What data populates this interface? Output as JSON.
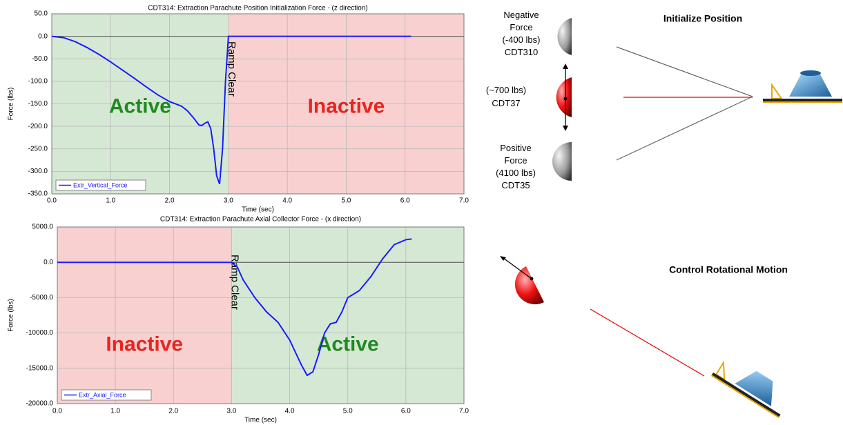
{
  "chart_data": [
    {
      "type": "line",
      "title": "CDT314:  Extraction Parachute Position Initialization Force - (z direction)",
      "x_label": "Time (sec)",
      "y_label": "Force (lbs)",
      "xlim": [
        0,
        7
      ],
      "ylim": [
        -350,
        50
      ],
      "xticks": [
        {
          "value": 0,
          "label": "0.0"
        },
        {
          "value": 1,
          "label": "1.0"
        },
        {
          "value": 2,
          "label": "2.0"
        },
        {
          "value": 3,
          "label": "3.0"
        },
        {
          "value": 4,
          "label": "4.0"
        },
        {
          "value": 5,
          "label": "5.0"
        },
        {
          "value": 6,
          "label": "6.0"
        },
        {
          "value": 7,
          "label": "7.0"
        }
      ],
      "yticks": [
        {
          "value": 50,
          "label": "50.0"
        },
        {
          "value": 0,
          "label": "0.0"
        },
        {
          "value": -50,
          "label": "-50.0"
        },
        {
          "value": -100,
          "label": "-100.0"
        },
        {
          "value": -150,
          "label": "-150.0"
        },
        {
          "value": -200,
          "label": "-200.0"
        },
        {
          "value": -250,
          "label": "-250.0"
        },
        {
          "value": -300,
          "label": "-300.0"
        },
        {
          "value": -350,
          "label": "-350.0"
        }
      ],
      "grid": true,
      "regions": [
        {
          "start": 0,
          "end": 3,
          "color": "#d5e8d4",
          "label": "Active",
          "label_color": "#1f8a1f"
        },
        {
          "start": 3,
          "end": 7,
          "color": "#f8d0d0",
          "label": "Inactive",
          "label_color": "#e8241f"
        }
      ],
      "vline": {
        "x": 3,
        "label": "Ramp Clear"
      },
      "x": [
        0,
        0.2,
        0.4,
        0.6,
        0.8,
        1.0,
        1.2,
        1.4,
        1.6,
        1.8,
        2.0,
        2.2,
        2.3,
        2.4,
        2.5,
        2.55,
        2.6,
        2.65,
        2.7,
        2.75,
        2.8,
        2.85,
        2.9,
        2.95,
        3.0,
        3.5,
        4.0,
        5.0,
        6.1
      ],
      "series": [
        {
          "name": "Extr_Vertical_Force",
          "color": "#1a1aff",
          "values": [
            0,
            -3,
            -12,
            -25,
            -40,
            -57,
            -75,
            -93,
            -112,
            -130,
            -145,
            -155,
            -165,
            -180,
            -197,
            -198,
            -193,
            -190,
            -205,
            -250,
            -310,
            -328,
            -250,
            -100,
            0,
            0,
            0,
            0,
            0
          ]
        }
      ]
    },
    {
      "type": "line",
      "title": "CDT314:  Extraction Parachute Axial Collector Force  - (x direction)",
      "x_label": "Time (sec)",
      "y_label": "Force (lbs)",
      "xlim": [
        0,
        7
      ],
      "ylim": [
        -20000,
        5000
      ],
      "xticks": [
        {
          "value": 0,
          "label": "0.0"
        },
        {
          "value": 1,
          "label": "1.0"
        },
        {
          "value": 2,
          "label": "2.0"
        },
        {
          "value": 3,
          "label": "3.0"
        },
        {
          "value": 4,
          "label": "4.0"
        },
        {
          "value": 5,
          "label": "5.0"
        },
        {
          "value": 6,
          "label": "6.0"
        },
        {
          "value": 7,
          "label": "7.0"
        }
      ],
      "yticks": [
        {
          "value": 5000,
          "label": "5000.0"
        },
        {
          "value": 0,
          "label": "0.0"
        },
        {
          "value": -5000,
          "label": "-5000.0"
        },
        {
          "value": -10000,
          "label": "-10000.0"
        },
        {
          "value": -15000,
          "label": "-15000.0"
        },
        {
          "value": -20000,
          "label": "-20000.0"
        }
      ],
      "grid": true,
      "regions": [
        {
          "start": 0,
          "end": 3,
          "color": "#f8d0d0",
          "label": "Inactive",
          "label_color": "#e8241f"
        },
        {
          "start": 3,
          "end": 7,
          "color": "#d5e8d4",
          "label": "Active",
          "label_color": "#1f8a1f"
        }
      ],
      "vline": {
        "x": 3,
        "label": "Ramp Clear"
      },
      "x": [
        0,
        1,
        2,
        3.0,
        3.1,
        3.2,
        3.4,
        3.6,
        3.8,
        4.0,
        4.2,
        4.3,
        4.4,
        4.5,
        4.6,
        4.7,
        4.8,
        4.9,
        5.0,
        5.2,
        5.4,
        5.6,
        5.8,
        6.0,
        6.1
      ],
      "series": [
        {
          "name": "Extr_Axial_Force",
          "color": "#1a1aff",
          "values": [
            0,
            0,
            0,
            0,
            -700,
            -2500,
            -5000,
            -7000,
            -8500,
            -11000,
            -14500,
            -16000,
            -15500,
            -13000,
            -10000,
            -8700,
            -8500,
            -7000,
            -5000,
            -4000,
            -2000,
            500,
            2500,
            3200,
            3300
          ]
        }
      ]
    }
  ],
  "diagram": {
    "headings": [
      "Initialize  Position",
      "Control Rotational Motion"
    ],
    "weights": [
      {
        "lines": [
          "Negative",
          "Force",
          "(-400 lbs)",
          "CDT310"
        ]
      },
      {
        "lines": [
          "(~700 lbs)",
          "CDT37"
        ]
      },
      {
        "lines": [
          "Positive",
          "Force",
          "(4100 lbs)",
          "CDT35"
        ]
      }
    ]
  }
}
